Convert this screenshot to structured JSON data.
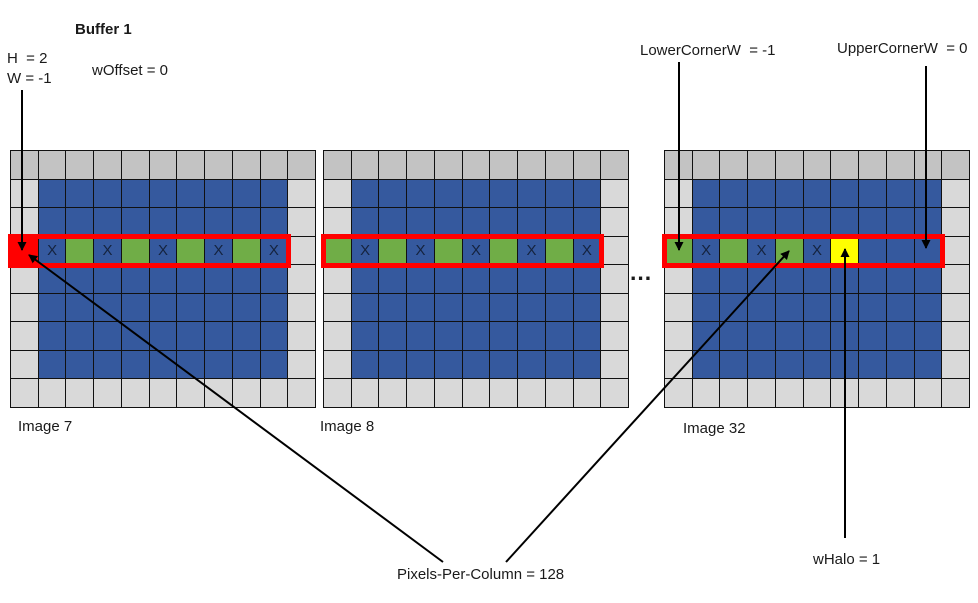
{
  "title": "Buffer 1",
  "annotations": {
    "h": "H  = 2",
    "w": "W = -1",
    "w_offset": "wOffset = 0",
    "lower_corner": "LowerCornerW  = -1",
    "upper_corner": "UpperCornerW  = 0",
    "pixels_per_column": "Pixels-Per-Column = 128",
    "w_halo": "wHalo = 1",
    "ellipsis": "..."
  },
  "x_mark": "X",
  "colors": {
    "blue": "#35599E",
    "green": "#70AD47",
    "red": "#FF0000",
    "yellow": "#FFFF00",
    "gray_top": "#C3C3C3",
    "gray": "#D9D9D9",
    "highlight_border": "#FF0000"
  },
  "grids": [
    {
      "label": "Image 7",
      "columns": 11,
      "rows": 9,
      "highlight_row": 3,
      "highlight_cells": [
        "red",
        "x",
        "green",
        "x",
        "green",
        "x",
        "green",
        "x",
        "green",
        "x"
      ]
    },
    {
      "label": "Image 8",
      "columns": 11,
      "rows": 9,
      "highlight_row": 3,
      "highlight_cells": [
        "green",
        "x",
        "green",
        "x",
        "green",
        "x",
        "green",
        "x",
        "green",
        "x"
      ]
    },
    {
      "label": "Image 32",
      "columns": 11,
      "rows": 9,
      "highlight_row": 3,
      "highlight_cells": [
        "green",
        "x",
        "green",
        "x",
        "green",
        "x",
        "yellow",
        "blue",
        "blue",
        "blue"
      ]
    }
  ]
}
